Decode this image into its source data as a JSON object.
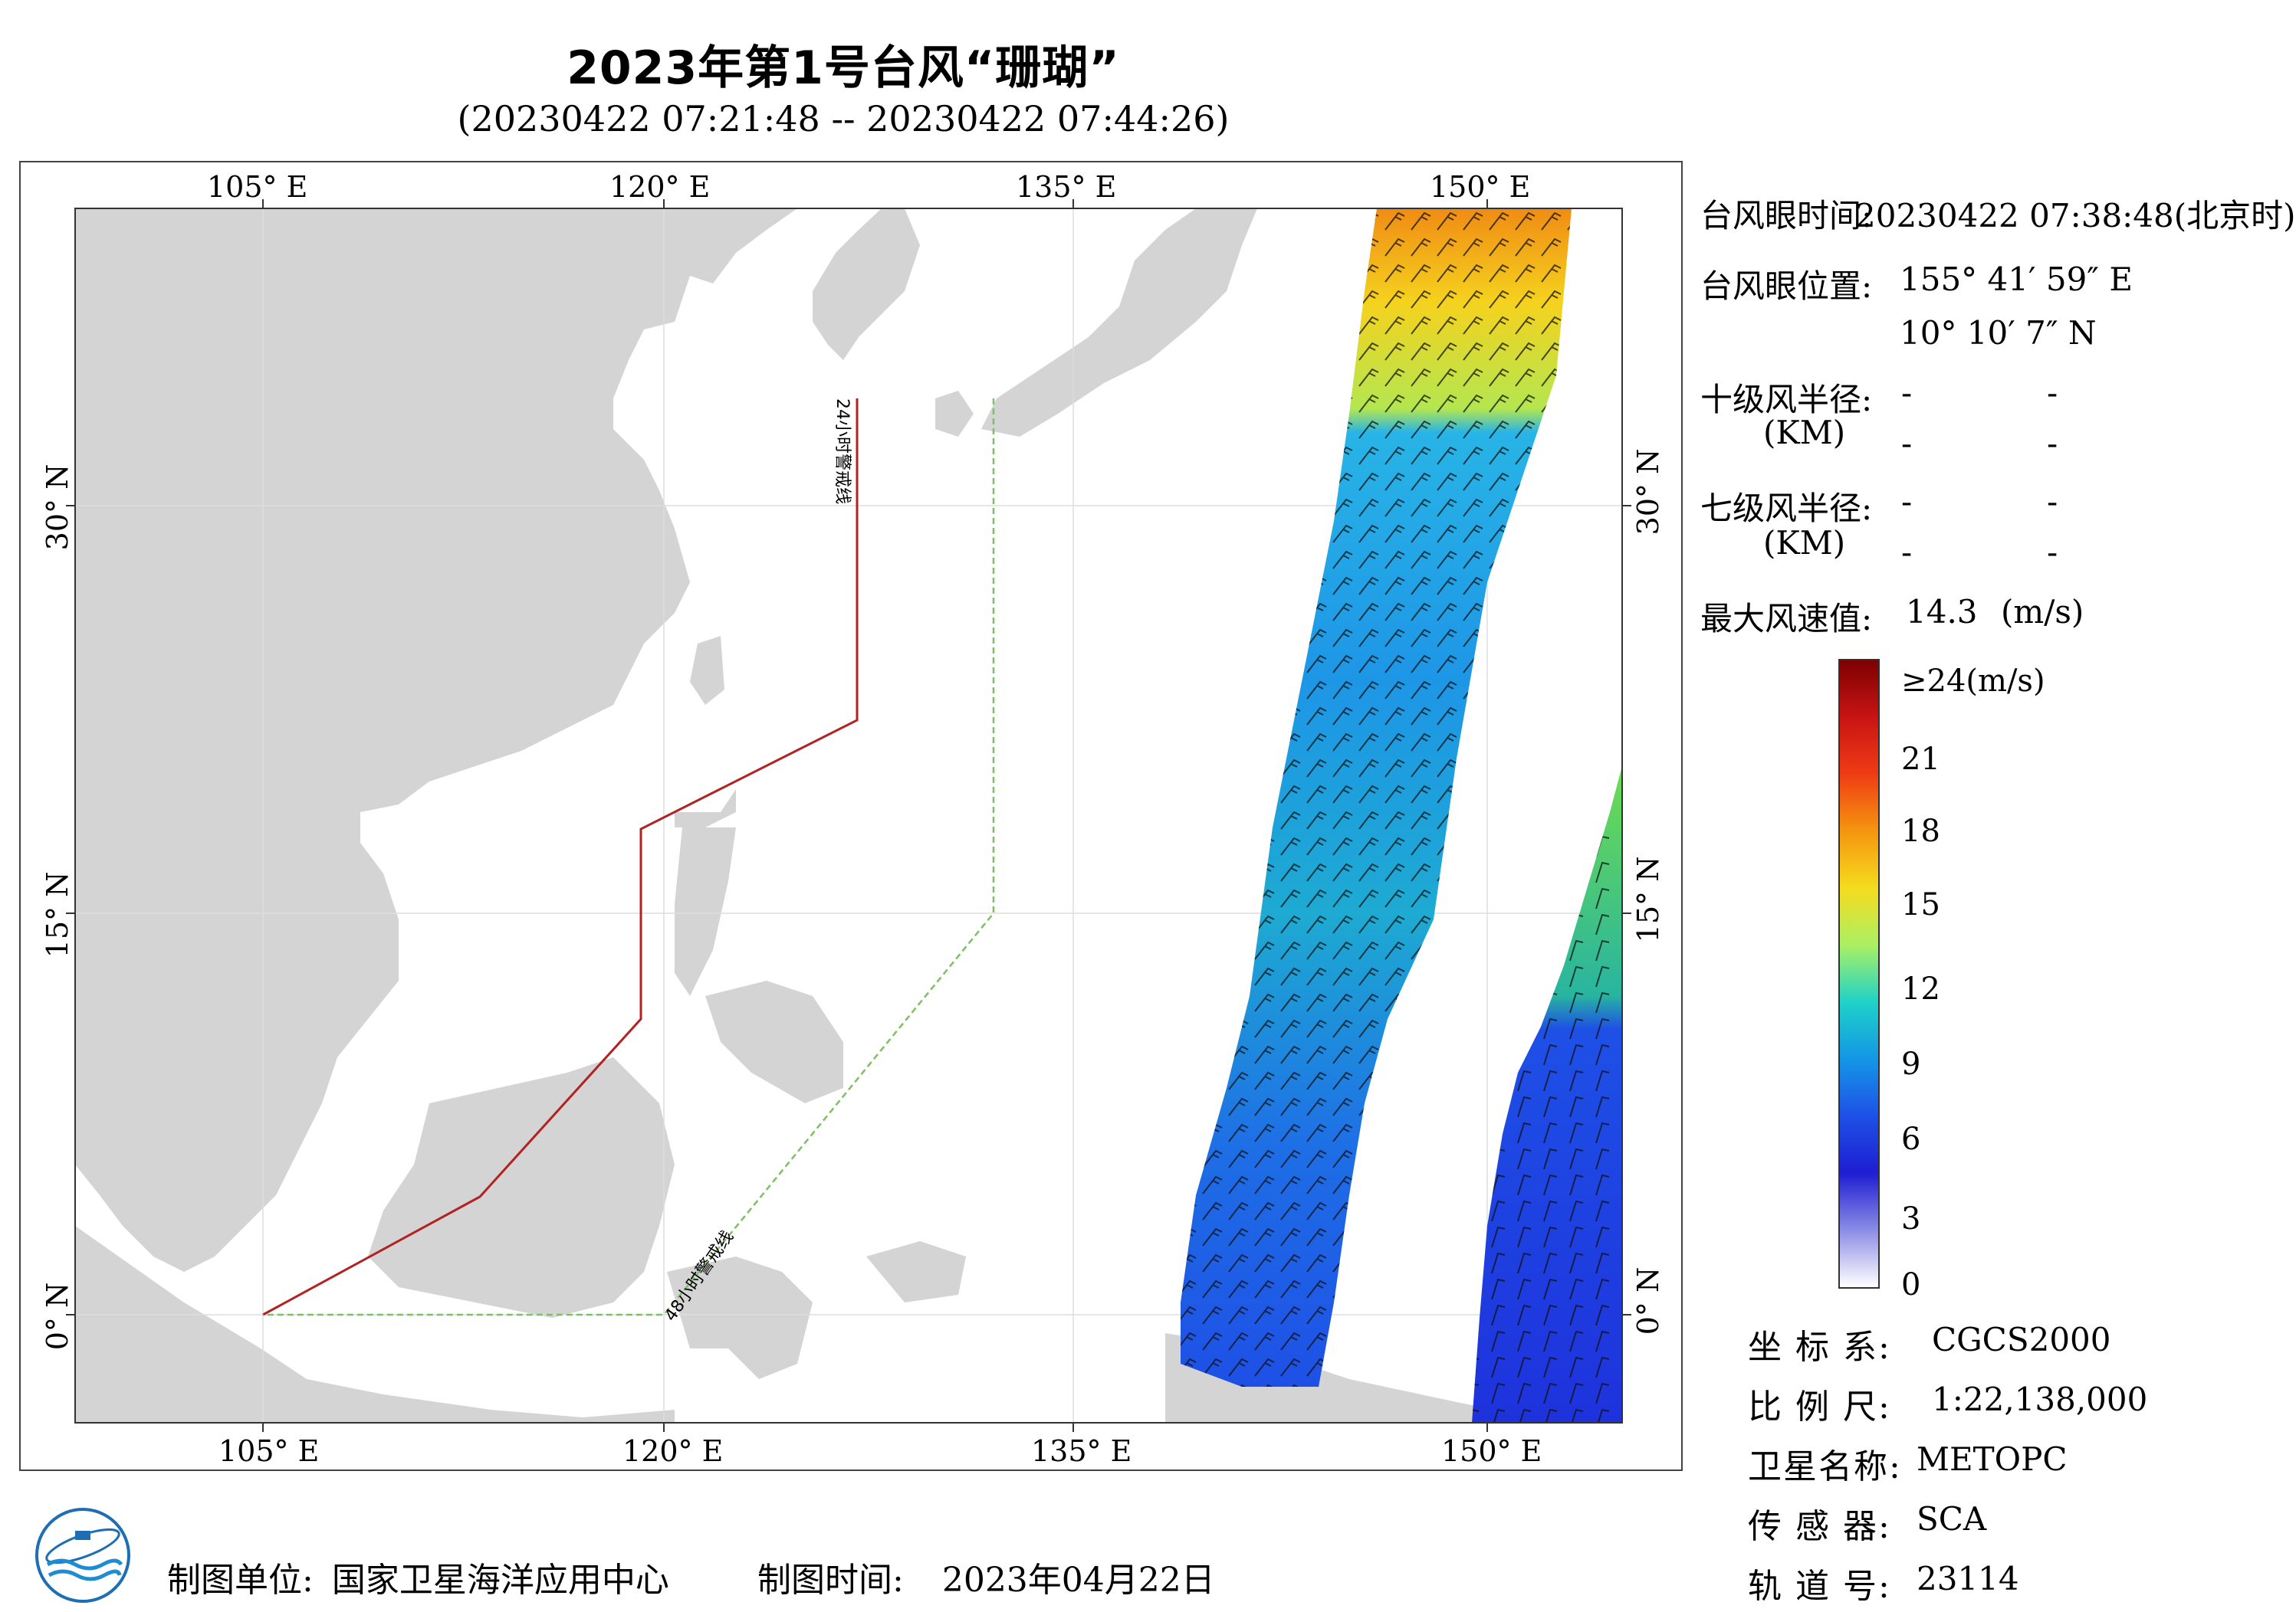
{
  "title": "2023年第1号台风“珊瑚”",
  "subtitle": "(20230422 07:21:48 -- 20230422 07:44:26)",
  "map": {
    "lon_ticks_top": [
      "105° E",
      "120° E",
      "135° E",
      "150° E"
    ],
    "lon_ticks_bottom": [
      "105° E",
      "120° E",
      "135° E",
      "150° E"
    ],
    "lat_ticks_left": [
      "30° N",
      "15° N",
      "0° N"
    ],
    "lat_ticks_right": [
      "30° N",
      "15° N",
      "0° N"
    ],
    "warning_line_24h_label": "24小时警戒线",
    "warning_line_48h_label": "48小时警戒线",
    "colors": {
      "land": "#d4d4d4",
      "ocean": "#ffffff",
      "line_24h": "#b22222",
      "line_48h": "#7cc063",
      "grid": "#dddddd"
    }
  },
  "info": {
    "eye_time_label": "台风眼时间:",
    "eye_time_value": "20230422 07:38:48(北京时)",
    "eye_pos_label": "台风眼位置:",
    "eye_lon": "155° 41′ 59″ E",
    "eye_lat": "10° 10′ 7″ N",
    "r10_label": "十级风半径:",
    "r10_unit": "(KM)",
    "r10_vals": [
      "-",
      "-",
      "-",
      "-"
    ],
    "r7_label": "七级风半径:",
    "r7_unit": "(KM)",
    "r7_vals": [
      "-",
      "-",
      "-",
      "-"
    ],
    "max_wind_label": "最大风速值:",
    "max_wind_value": "14.3",
    "max_wind_unit": "(m/s)"
  },
  "colorbar": {
    "labels": [
      "≥24(m/s)",
      "21",
      "18",
      "15",
      "12",
      "9",
      "6",
      "3",
      "0"
    ],
    "colors": [
      "#7f0000",
      "#c81414",
      "#f03c14",
      "#f5960f",
      "#f5dc1e",
      "#aaf064",
      "#1ed2c8",
      "#1496e6",
      "#1e50e6",
      "#1e1ed2",
      "#8c8ce6",
      "#ffffff"
    ]
  },
  "meta": {
    "crs_label": "坐 标 系:",
    "crs_value": "CGCS2000",
    "scale_label": "比 例 尺:",
    "scale_value": "1:22,138,000",
    "sat_label": "卫星名称:",
    "sat_value": "METOPC",
    "sensor_label": "传 感 器:",
    "sensor_value": "SCA",
    "orbit_label": "轨 道 号:",
    "orbit_value": "23114"
  },
  "footer": {
    "maker_label": "制图单位:",
    "maker_value": "国家卫星海洋应用中心",
    "time_label": "制图时间:",
    "time_value": "2023年04月22日"
  }
}
